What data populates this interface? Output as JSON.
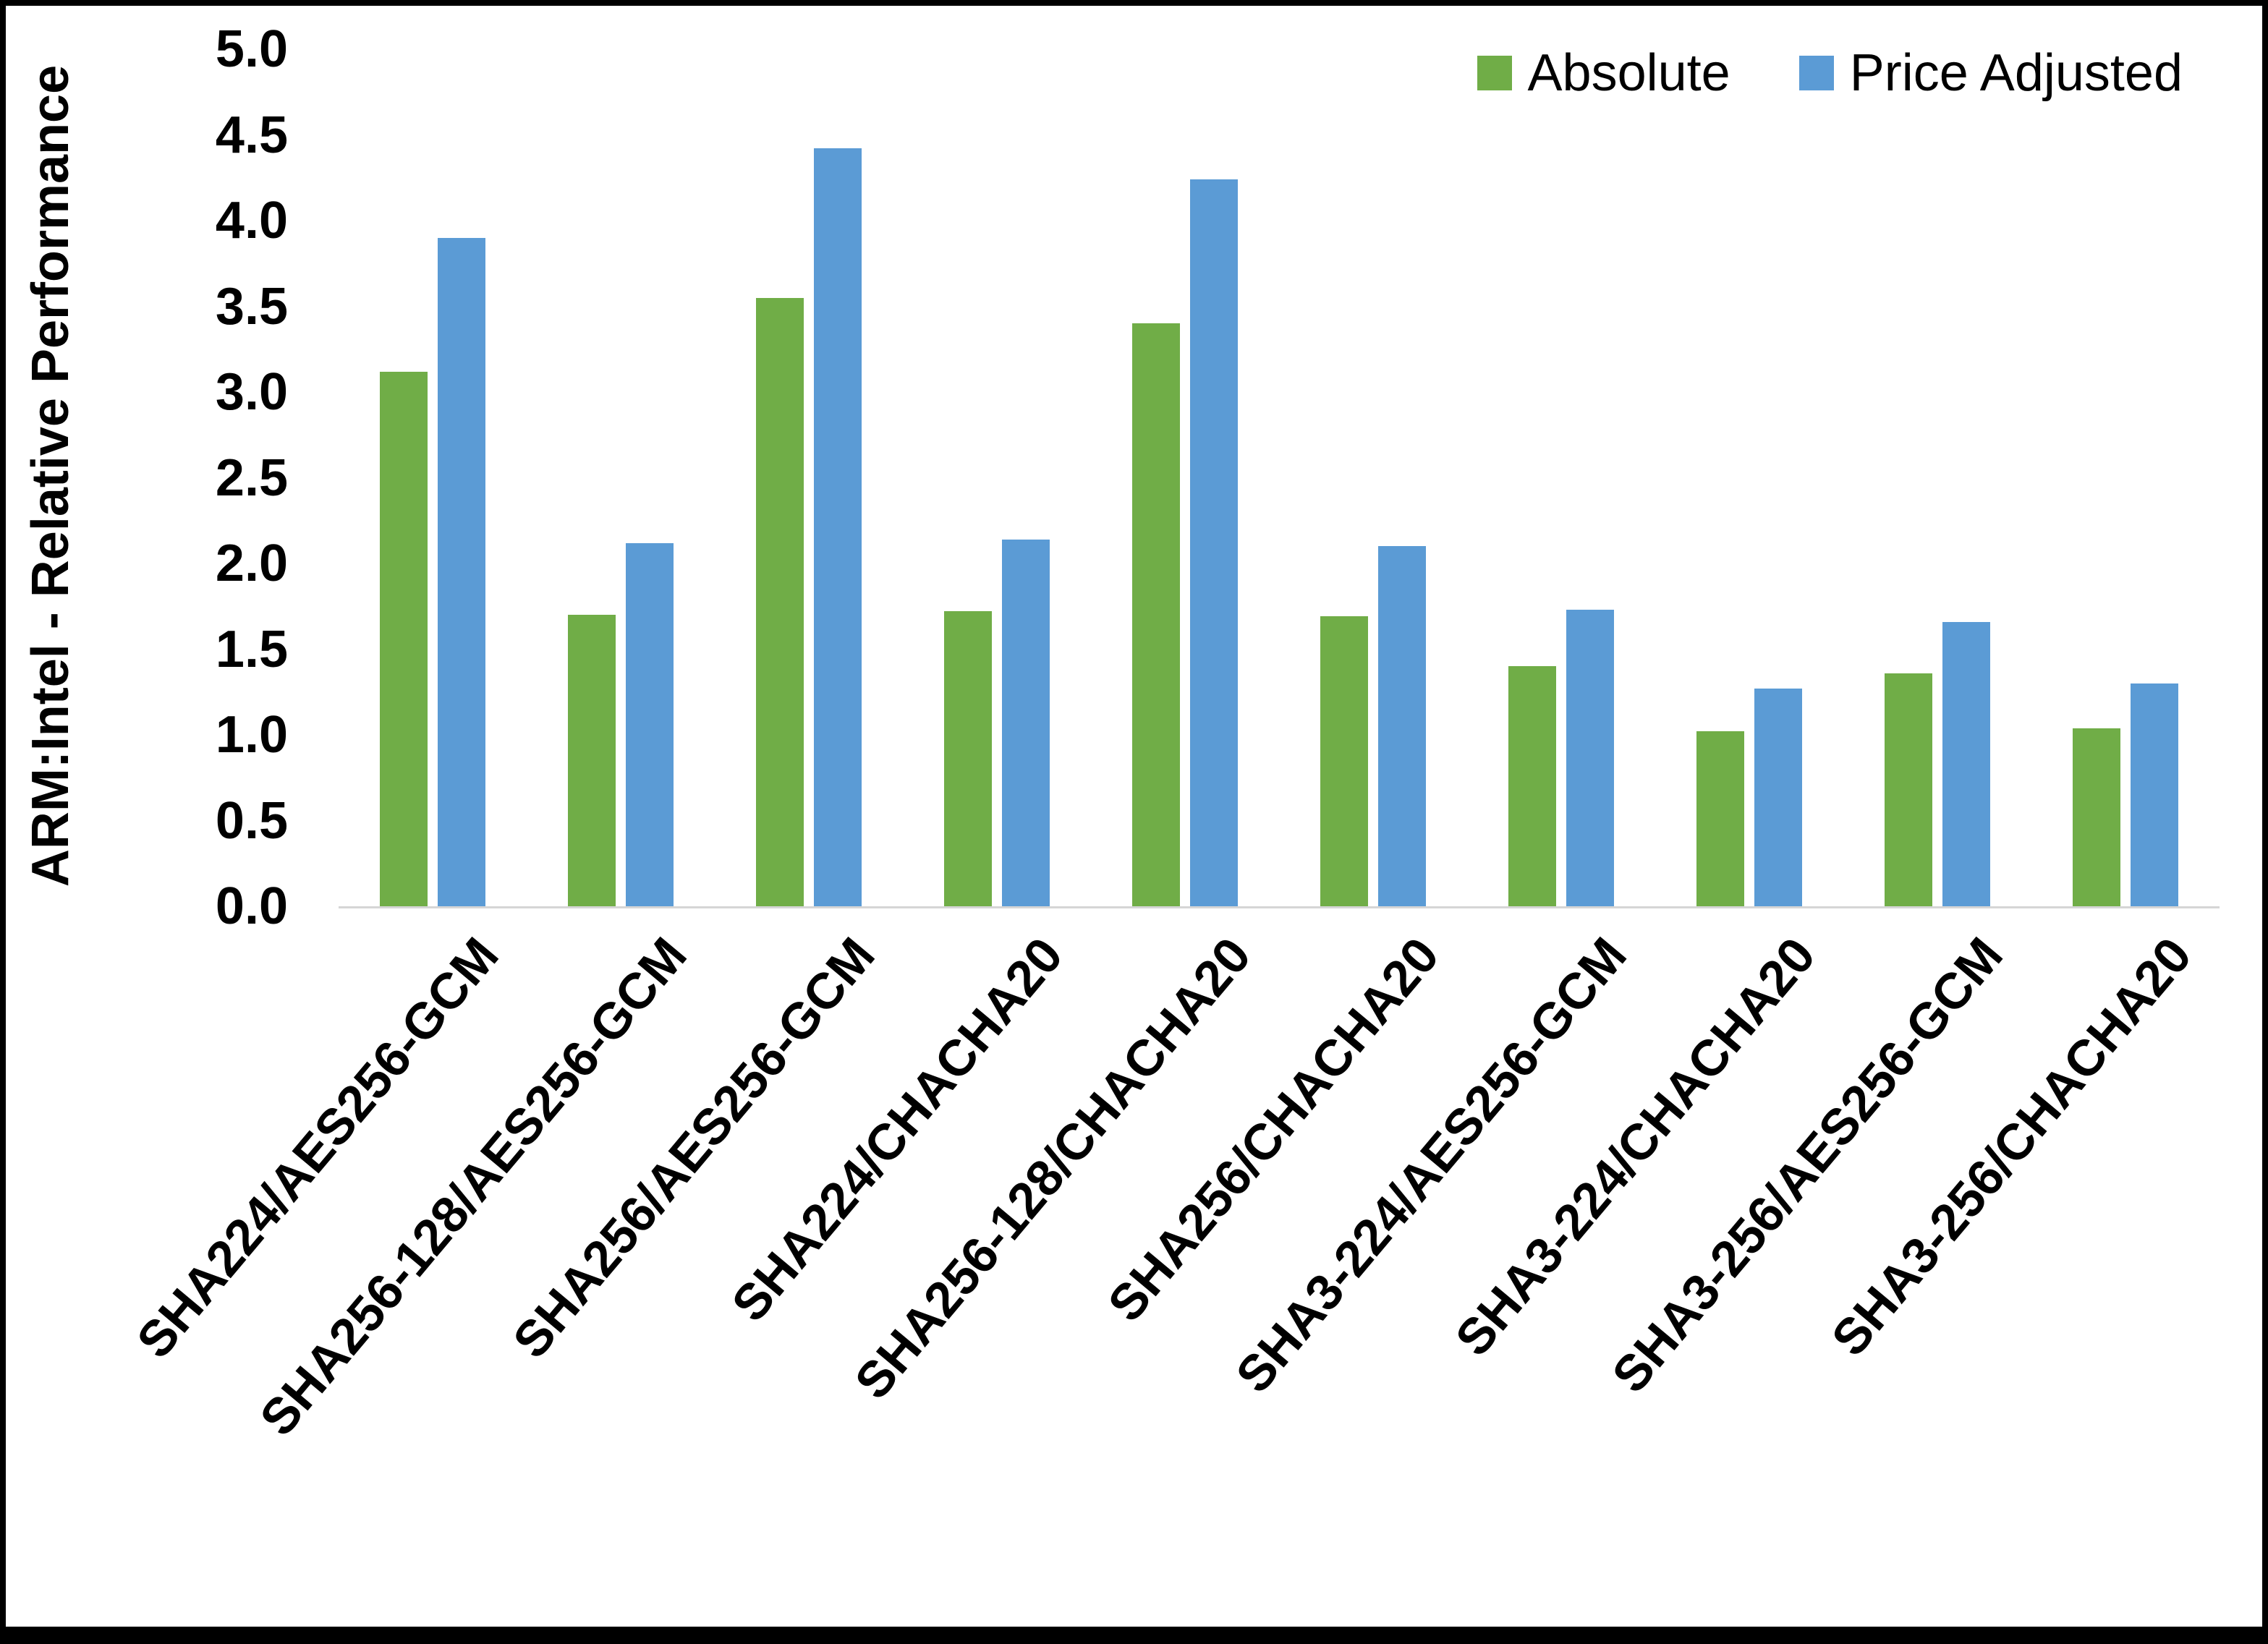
{
  "chart_data": {
    "type": "bar",
    "title": "",
    "xlabel": "",
    "ylabel": "ARM:Intel - Relative Performance",
    "ylim": [
      0,
      5
    ],
    "ytick_step": 0.5,
    "grid": false,
    "legend_position": "top-right",
    "categories": [
      "SHA224/AES256-GCM",
      "SHA256-128/AES256-GCM",
      "SHA256/AES256-GCM",
      "SHA224/CHACHA20",
      "SHA256-128/CHACHA20",
      "SHA256/CHACHA20",
      "SHA3-224/AES256-GCM",
      "SHA3-224/CHACHA20",
      "SHA3-256/AES256-GCM",
      "SHA3-256/CHACHA20"
    ],
    "series": [
      {
        "name": "Absolute",
        "color": "#70AD47",
        "values": [
          3.12,
          1.7,
          3.55,
          1.72,
          3.4,
          1.69,
          1.4,
          1.02,
          1.36,
          1.04
        ]
      },
      {
        "name": "Price Adjusted",
        "color": "#5B9BD5",
        "values": [
          3.9,
          2.12,
          4.42,
          2.14,
          4.24,
          2.1,
          1.73,
          1.27,
          1.66,
          1.3
        ]
      }
    ]
  }
}
